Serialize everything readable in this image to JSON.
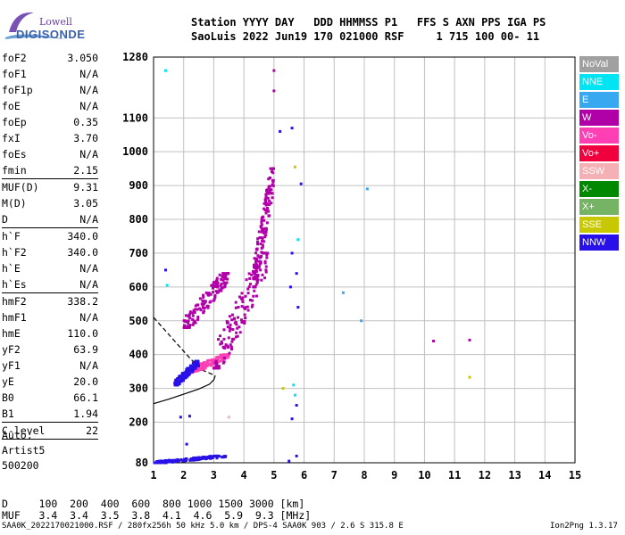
{
  "logo": {
    "line1": "Lowell",
    "line2": "DIGISONDE"
  },
  "header": {
    "line1": "Station YYYY DAY   DDD HHMMSS P1   FFS S AXN PPS IGA PS",
    "line2": "SaoLuis 2022 Jun19 170 021000 RSF     1 715 100 00- 11"
  },
  "params": {
    "group1": [
      {
        "name": "foF2",
        "value": "3.050"
      },
      {
        "name": "foF1",
        "value": "N/A"
      },
      {
        "name": "foF1p",
        "value": "N/A"
      },
      {
        "name": "foE",
        "value": "N/A"
      },
      {
        "name": "foEp",
        "value": "0.35"
      },
      {
        "name": "fxI",
        "value": "3.70"
      },
      {
        "name": "foEs",
        "value": "N/A"
      },
      {
        "name": "fmin",
        "value": "2.15"
      }
    ],
    "group2": [
      {
        "name": "MUF(D)",
        "value": "9.31"
      },
      {
        "name": "M(D)",
        "value": "3.05"
      },
      {
        "name": "D",
        "value": "N/A"
      }
    ],
    "group3": [
      {
        "name": "h`F",
        "value": "340.0"
      },
      {
        "name": "h`F2",
        "value": "340.0"
      },
      {
        "name": "h`E",
        "value": "N/A"
      },
      {
        "name": "h`Es",
        "value": "N/A"
      }
    ],
    "group4": [
      {
        "name": "hmF2",
        "value": "338.2"
      },
      {
        "name": "hmF1",
        "value": "N/A"
      },
      {
        "name": "hmE",
        "value": "110.0"
      },
      {
        "name": "yF2",
        "value": "63.9"
      },
      {
        "name": "yF1",
        "value": "N/A"
      },
      {
        "name": "yE",
        "value": "20.0"
      },
      {
        "name": "B0",
        "value": "66.1"
      },
      {
        "name": "B1",
        "value": "1.94"
      }
    ],
    "group5": [
      {
        "name": "C-level",
        "value": "22"
      }
    ]
  },
  "auto": {
    "line1": "Auto:",
    "line2": "Artist5",
    "line3": "500200"
  },
  "legend": [
    {
      "label": "NoVal",
      "color": "#a0a0a0"
    },
    {
      "label": "NNE",
      "color": "#00e4f4"
    },
    {
      "label": "E",
      "color": "#38a8f0"
    },
    {
      "label": "W",
      "color": "#b000a8"
    },
    {
      "label": "Vo-",
      "color": "#ff3fb4"
    },
    {
      "label": "Vo+",
      "color": "#f0003c"
    },
    {
      "label": "SSW",
      "color": "#f4b0b4"
    },
    {
      "label": "X-",
      "color": "#008800"
    },
    {
      "label": "X+",
      "color": "#74b464"
    },
    {
      "label": "SSE",
      "color": "#c8c800"
    },
    {
      "label": "NNW",
      "color": "#2810e8"
    }
  ],
  "muf_table": {
    "line1": "D     100  200  400  600  800 1000 1500 3000 [km]",
    "line2": "MUF   3.4  3.4  3.5  3.8  4.1  4.6  5.9  9.3 [MHz]"
  },
  "footer": {
    "left": "SAA0K_2022170021000.RSF / 280fx256h 50 kHz 5.0 km / DPS-4 SAA0K 903 / 2.6 S 315.8 E",
    "right": "Ion2Png 1.3.17"
  },
  "chart_data": {
    "type": "scatter",
    "title": "",
    "xlabel": "",
    "ylabel": "",
    "xlim": [
      1,
      15
    ],
    "ylim": [
      80,
      1280
    ],
    "x_ticks": [
      1,
      2,
      3,
      4,
      5,
      6,
      7,
      8,
      9,
      10,
      11,
      12,
      13,
      14,
      15
    ],
    "y_ticks": [
      80,
      200,
      300,
      400,
      500,
      600,
      700,
      800,
      900,
      1000,
      1100,
      1280
    ],
    "grid": true,
    "legend_position": "right",
    "profile_solid": [
      {
        "x": 1.0,
        "y": 255
      },
      {
        "x": 1.5,
        "y": 268
      },
      {
        "x": 2.0,
        "y": 283
      },
      {
        "x": 2.5,
        "y": 298
      },
      {
        "x": 2.85,
        "y": 312
      },
      {
        "x": 3.0,
        "y": 325
      },
      {
        "x": 3.05,
        "y": 338
      }
    ],
    "profile_dashed": [
      {
        "x": 1.0,
        "y": 510
      },
      {
        "x": 1.4,
        "y": 470
      },
      {
        "x": 1.8,
        "y": 430
      },
      {
        "x": 2.2,
        "y": 390
      },
      {
        "x": 2.6,
        "y": 355
      },
      {
        "x": 3.05,
        "y": 338
      }
    ],
    "echo_clusters": [
      {
        "name": "Vo-",
        "x_from": 2.1,
        "x_to": 3.5,
        "y_from": 345,
        "y_to": 400,
        "color": "#ff3fb4"
      },
      {
        "name": "W",
        "x_from": 3.0,
        "x_to": 4.8,
        "y_from": 360,
        "y_to": 700,
        "color": "#b000a8"
      },
      {
        "name": "W",
        "x_from": 4.3,
        "x_to": 5.0,
        "y_from": 600,
        "y_to": 950,
        "color": "#b000a8"
      },
      {
        "name": "W",
        "x_from": 2.0,
        "x_to": 3.5,
        "y_from": 480,
        "y_to": 640,
        "color": "#b000a8"
      },
      {
        "name": "NNW",
        "x_from": 1.7,
        "x_to": 2.5,
        "y_from": 310,
        "y_to": 380,
        "color": "#2810e8"
      },
      {
        "name": "NNW",
        "x_from": 1.0,
        "x_to": 3.4,
        "y_from": 80,
        "y_to": 100,
        "color": "#2810e8"
      }
    ],
    "scattered_points": [
      {
        "x": 1.4,
        "y": 1240,
        "color": "#00e4f4"
      },
      {
        "x": 5.0,
        "y": 1240,
        "color": "#b000a8"
      },
      {
        "x": 5.0,
        "y": 1180,
        "color": "#b000a8"
      },
      {
        "x": 5.6,
        "y": 1070,
        "color": "#2810e8"
      },
      {
        "x": 5.2,
        "y": 1060,
        "color": "#2810e8"
      },
      {
        "x": 5.9,
        "y": 905,
        "color": "#2810e8"
      },
      {
        "x": 8.1,
        "y": 890,
        "color": "#38a8f0"
      },
      {
        "x": 5.7,
        "y": 955,
        "color": "#c8c800"
      },
      {
        "x": 5.8,
        "y": 740,
        "color": "#00e4f4"
      },
      {
        "x": 5.6,
        "y": 700,
        "color": "#2810e8"
      },
      {
        "x": 5.75,
        "y": 640,
        "color": "#2810e8"
      },
      {
        "x": 5.8,
        "y": 540,
        "color": "#2810e8"
      },
      {
        "x": 7.3,
        "y": 583,
        "color": "#38a8f0"
      },
      {
        "x": 7.9,
        "y": 500,
        "color": "#38a8f0"
      },
      {
        "x": 10.3,
        "y": 440,
        "color": "#b000a8"
      },
      {
        "x": 11.5,
        "y": 443,
        "color": "#b000a8"
      },
      {
        "x": 11.5,
        "y": 333,
        "color": "#c8c800"
      },
      {
        "x": 1.4,
        "y": 650,
        "color": "#2810e8"
      },
      {
        "x": 1.45,
        "y": 605,
        "color": "#00e4f4"
      },
      {
        "x": 5.55,
        "y": 600,
        "color": "#2810e8"
      },
      {
        "x": 5.65,
        "y": 310,
        "color": "#00e4f4"
      },
      {
        "x": 5.7,
        "y": 280,
        "color": "#00e4f4"
      },
      {
        "x": 5.75,
        "y": 250,
        "color": "#2810e8"
      },
      {
        "x": 5.3,
        "y": 300,
        "color": "#c8c800"
      },
      {
        "x": 1.9,
        "y": 215,
        "color": "#2810e8"
      },
      {
        "x": 2.2,
        "y": 218,
        "color": "#2810e8"
      },
      {
        "x": 3.5,
        "y": 215,
        "color": "#f4b0b4"
      },
      {
        "x": 2.1,
        "y": 135,
        "color": "#2810e8"
      },
      {
        "x": 5.5,
        "y": 85,
        "color": "#2810e8"
      },
      {
        "x": 5.75,
        "y": 100,
        "color": "#2810e8"
      },
      {
        "x": 5.6,
        "y": 210,
        "color": "#2810e8"
      }
    ]
  }
}
